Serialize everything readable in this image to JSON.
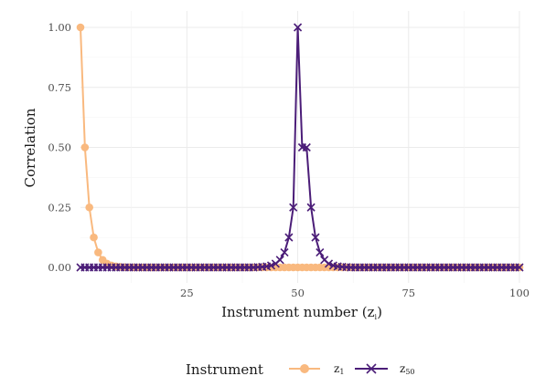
{
  "chart_data": {
    "type": "line",
    "title": "",
    "xlabel": "Instrument number (z",
    "xlabel_sub": "i",
    "xlabel_suffix": ")",
    "ylabel": "Correlation",
    "xlim": [
      1,
      100
    ],
    "ylim": [
      0,
      1
    ],
    "x_ticks": [
      25,
      50,
      75,
      100
    ],
    "x_tick_labels": [
      "25",
      "50",
      "75",
      "100"
    ],
    "y_ticks": [
      0,
      0.25,
      0.5,
      0.75,
      1
    ],
    "y_tick_labels": [
      "0.00",
      "0.25",
      "0.50",
      "0.75",
      "1.00"
    ],
    "grid": true,
    "legend": {
      "title": "Instrument",
      "position": "bottom"
    },
    "series": [
      {
        "name": "z",
        "name_sub": "1",
        "color": "#F9B97F",
        "marker": "circle",
        "x": [
          1,
          2,
          3,
          4,
          5,
          6,
          7,
          8,
          9,
          10,
          11,
          12,
          13,
          14,
          15,
          16,
          17,
          18,
          19,
          20,
          21,
          22,
          23,
          24,
          25,
          26,
          27,
          28,
          29,
          30,
          31,
          32,
          33,
          34,
          35,
          36,
          37,
          38,
          39,
          40,
          41,
          42,
          43,
          44,
          45,
          46,
          47,
          48,
          49,
          50,
          51,
          52,
          53,
          54,
          55,
          56,
          57,
          58,
          59,
          60,
          61,
          62,
          63,
          64,
          65,
          66,
          67,
          68,
          69,
          70,
          71,
          72,
          73,
          74,
          75,
          76,
          77,
          78,
          79,
          80,
          81,
          82,
          83,
          84,
          85,
          86,
          87,
          88,
          89,
          90,
          91,
          92,
          93,
          94,
          95,
          96,
          97,
          98,
          99,
          100
        ],
        "y": [
          1,
          0.5,
          0.25,
          0.125,
          0.0625,
          0.03125,
          0.015625,
          0.0078125,
          0.00390625,
          0.001953125,
          0.0009765625,
          0.00048828125,
          0.000244140625,
          0,
          0,
          0,
          0,
          0,
          0,
          0,
          0,
          0,
          0,
          0,
          0,
          0,
          0,
          0,
          0,
          0,
          0,
          0,
          0,
          0,
          0,
          0,
          0,
          0,
          0,
          0,
          0,
          0,
          0,
          0,
          0,
          0,
          0,
          0,
          0,
          0,
          0,
          0,
          0,
          0,
          0,
          0,
          0,
          0,
          0,
          0,
          0,
          0,
          0,
          0,
          0,
          0,
          0,
          0,
          0,
          0,
          0,
          0,
          0,
          0,
          0,
          0,
          0,
          0,
          0,
          0,
          0,
          0,
          0,
          0,
          0,
          0,
          0,
          0,
          0,
          0,
          0,
          0,
          0,
          0,
          0,
          0,
          0,
          0,
          0,
          0
        ]
      },
      {
        "name": "z",
        "name_sub": "50",
        "color": "#4B1D78",
        "marker": "x",
        "x": [
          1,
          2,
          3,
          4,
          5,
          6,
          7,
          8,
          9,
          10,
          11,
          12,
          13,
          14,
          15,
          16,
          17,
          18,
          19,
          20,
          21,
          22,
          23,
          24,
          25,
          26,
          27,
          28,
          29,
          30,
          31,
          32,
          33,
          34,
          35,
          36,
          37,
          38,
          39,
          40,
          41,
          42,
          43,
          44,
          45,
          46,
          47,
          48,
          49,
          50,
          51,
          52,
          53,
          54,
          55,
          56,
          57,
          58,
          59,
          60,
          61,
          62,
          63,
          64,
          65,
          66,
          67,
          68,
          69,
          70,
          71,
          72,
          73,
          74,
          75,
          76,
          77,
          78,
          79,
          80,
          81,
          82,
          83,
          84,
          85,
          86,
          87,
          88,
          89,
          90,
          91,
          92,
          93,
          94,
          95,
          96,
          97,
          98,
          99,
          100
        ],
        "y": [
          0,
          0,
          0,
          0,
          0,
          0,
          0,
          0,
          0,
          0,
          0,
          0,
          0,
          0,
          0,
          0,
          0,
          0,
          0,
          0,
          0,
          0,
          0,
          0,
          0,
          0,
          0,
          0,
          0,
          0,
          0,
          0,
          0,
          0,
          0,
          0,
          0,
          0,
          0,
          0,
          0.000977,
          0.001953,
          0.003906,
          0.007813,
          0.015625,
          0.03125,
          0.0625,
          0.125,
          0.25,
          1,
          0.5,
          0.5,
          0.25,
          0.125,
          0.0625,
          0.03125,
          0.015625,
          0.007813,
          0.003906,
          0.001953,
          0.000977,
          0,
          0,
          0,
          0,
          0,
          0,
          0,
          0,
          0,
          0,
          0,
          0,
          0,
          0,
          0,
          0,
          0,
          0,
          0,
          0,
          0,
          0,
          0,
          0,
          0,
          0,
          0,
          0,
          0,
          0,
          0,
          0,
          0,
          0,
          0,
          0,
          0,
          0,
          0
        ]
      }
    ]
  }
}
